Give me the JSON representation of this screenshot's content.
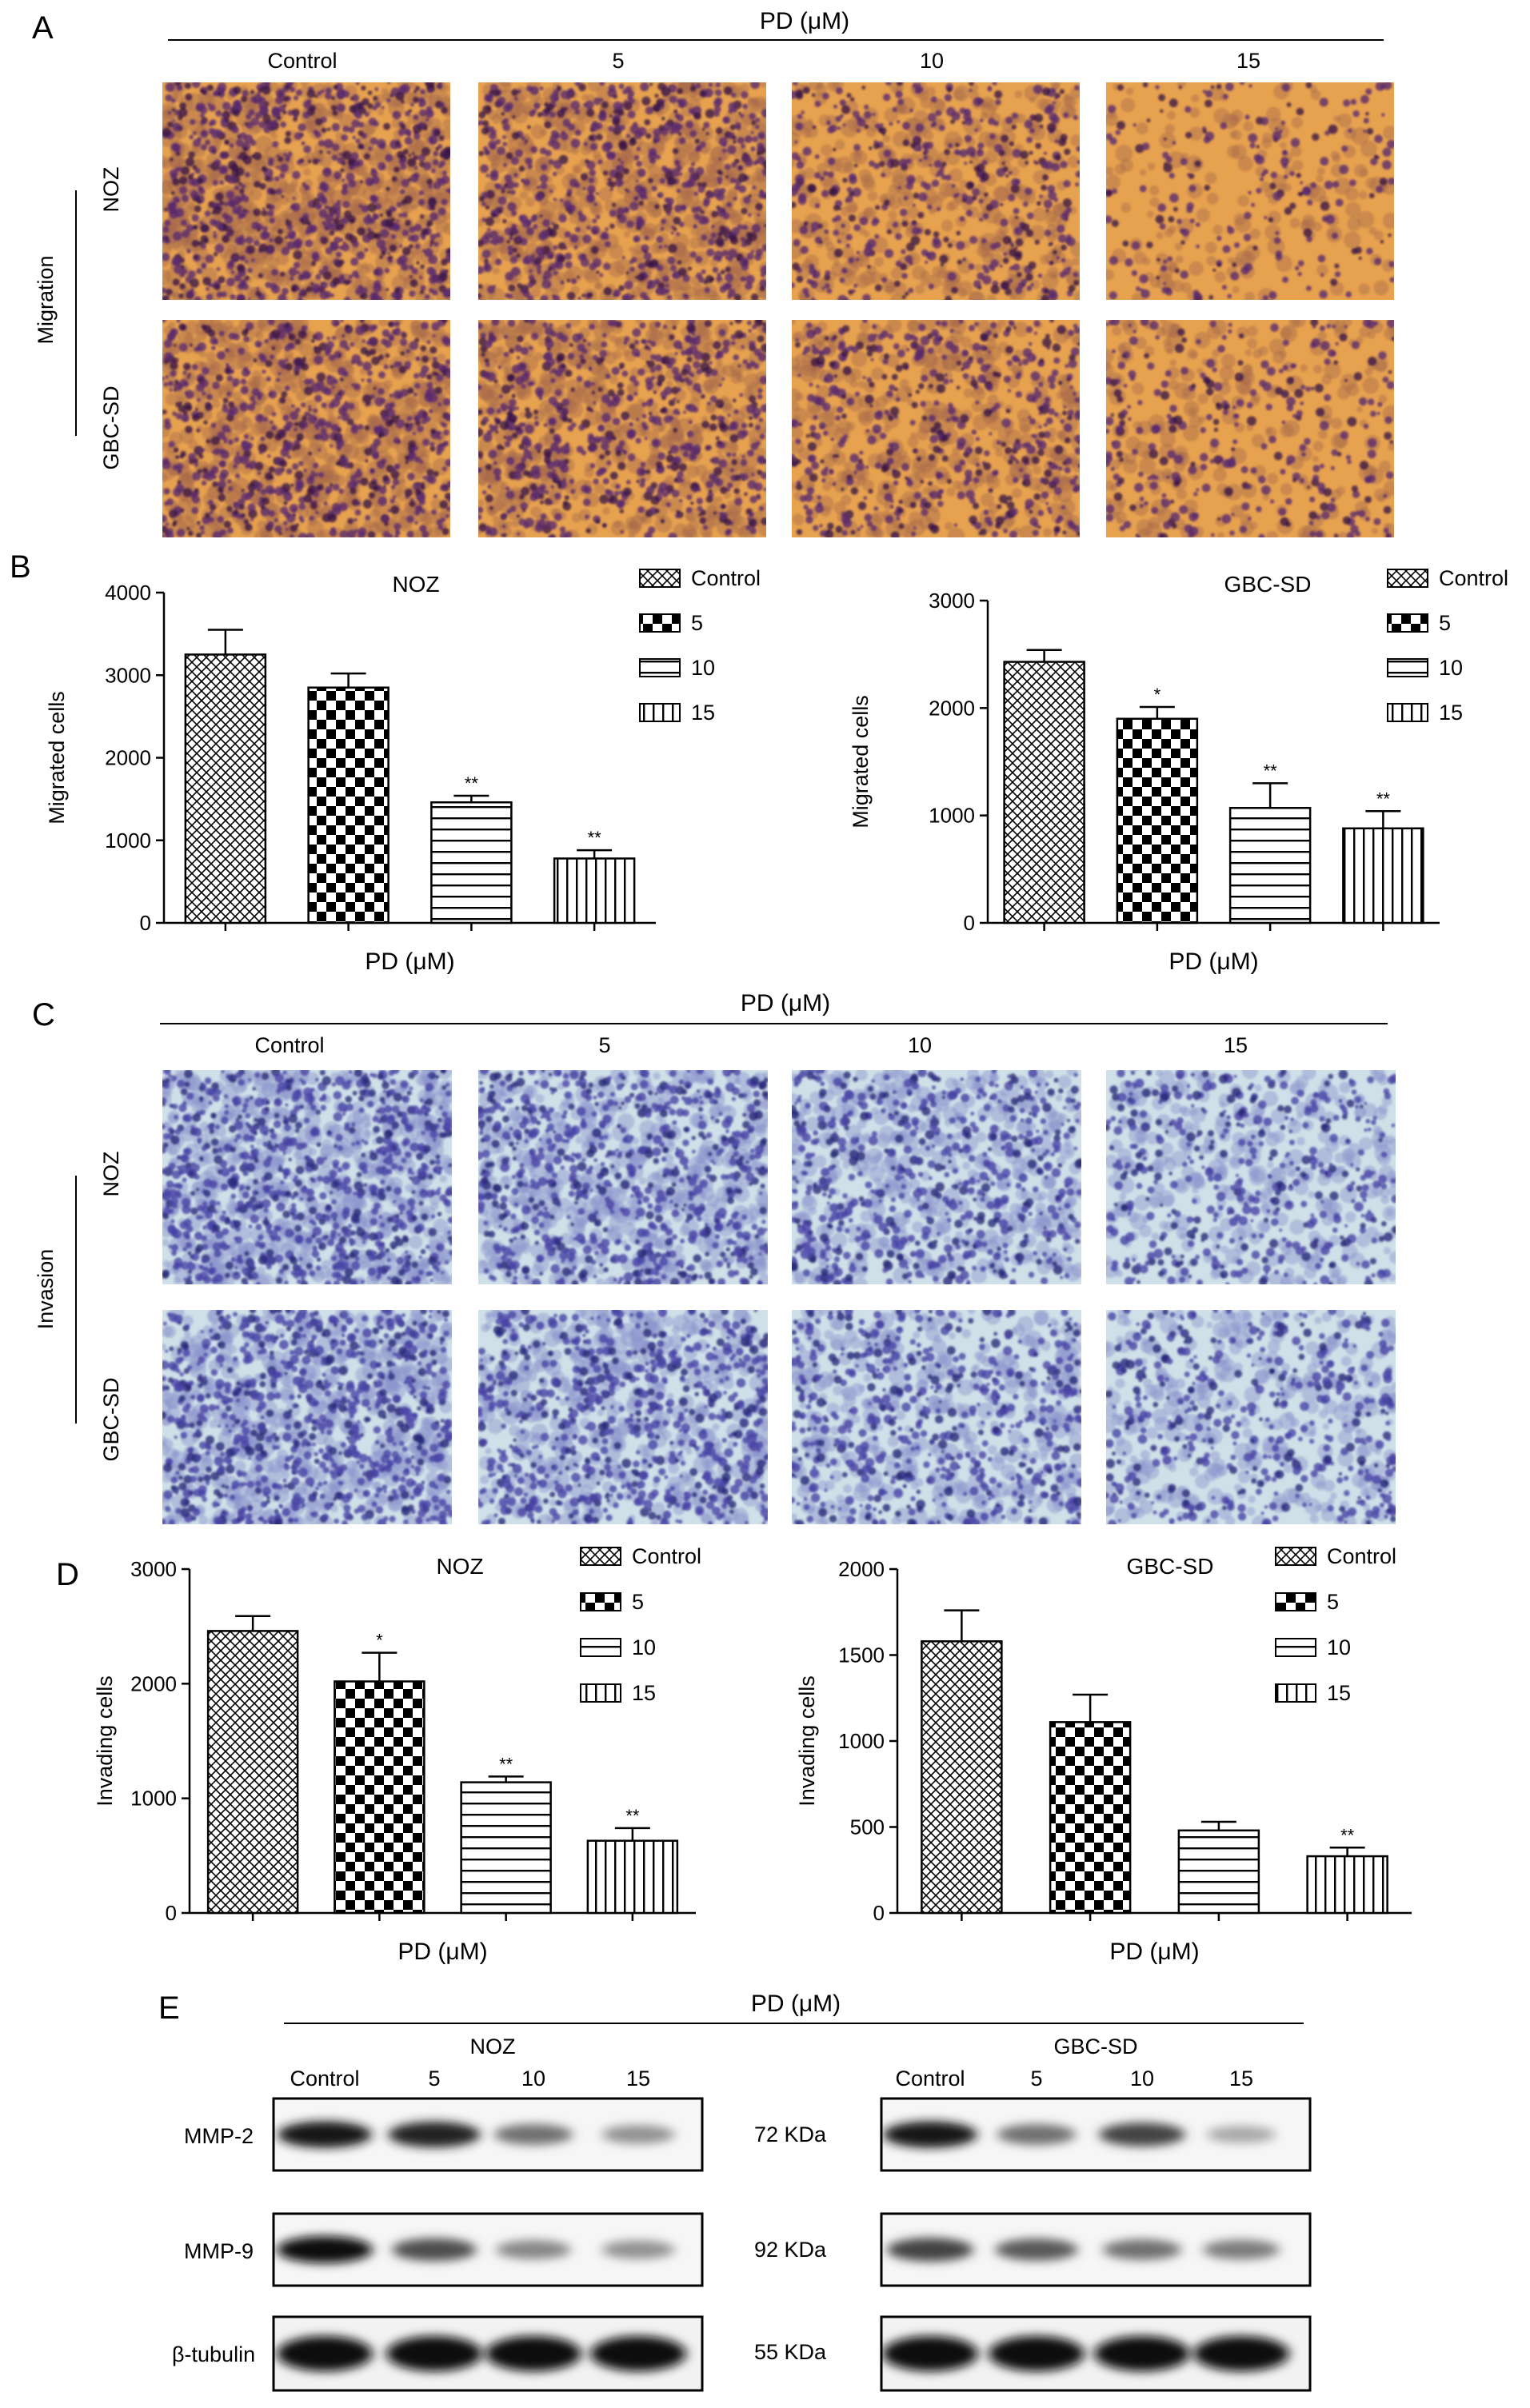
{
  "figure": {
    "panel_letters": [
      "A",
      "B",
      "C",
      "D",
      "E"
    ],
    "treatment_label": "PD (μM)",
    "doses": [
      "Control",
      "5",
      "10",
      "15"
    ]
  },
  "panel_a": {
    "assay_label": "Migration",
    "rows": [
      "NOZ",
      "GBC-SD"
    ],
    "colors": {
      "background": "#e7a24f",
      "mid": "#a86a4c",
      "cell": "#5a2a6e",
      "dark": "#3b1746"
    },
    "densities": [
      [
        1.0,
        0.85,
        0.55,
        0.25
      ],
      [
        0.9,
        0.8,
        0.6,
        0.35
      ]
    ]
  },
  "panel_c": {
    "assay_label": "Invasion",
    "rows": [
      "NOZ",
      "GBC-SD"
    ],
    "colors": {
      "background": "#cfe0e8",
      "mid": "#8b95cc",
      "cell": "#4a43a6",
      "dark": "#2b2a7a"
    },
    "densities": [
      [
        1.0,
        0.85,
        0.7,
        0.5
      ],
      [
        0.95,
        0.8,
        0.65,
        0.5
      ]
    ]
  },
  "chart_data": [
    {
      "panel": "B",
      "type": "bar",
      "title": "NOZ",
      "categories": [
        "Control",
        "5",
        "10",
        "15"
      ],
      "values": [
        3250,
        2850,
        1460,
        780
      ],
      "errors": [
        300,
        170,
        80,
        100
      ],
      "significance": [
        "",
        "",
        "**",
        "**"
      ],
      "xlabel": "PD (μM)",
      "ylabel": "Migrated cells",
      "ylim": [
        0,
        4000
      ],
      "yticks": [
        0,
        1000,
        2000,
        3000,
        4000
      ],
      "legend": [
        "Control",
        "5",
        "10",
        "15"
      ],
      "legend_position": "top-right"
    },
    {
      "panel": "B",
      "type": "bar",
      "title": "GBC-SD",
      "categories": [
        "Control",
        "5",
        "10",
        "15"
      ],
      "values": [
        2430,
        1900,
        1070,
        880
      ],
      "errors": [
        110,
        110,
        230,
        160
      ],
      "significance": [
        "",
        "*",
        "**",
        "**"
      ],
      "xlabel": "PD (μM)",
      "ylabel": "Migrated cells",
      "ylim": [
        0,
        3000
      ],
      "yticks": [
        0,
        1000,
        2000,
        3000
      ],
      "legend": [
        "Control",
        "5",
        "10",
        "15"
      ],
      "legend_position": "top-right"
    },
    {
      "panel": "D",
      "type": "bar",
      "title": "NOZ",
      "categories": [
        "Control",
        "5",
        "10",
        "15"
      ],
      "values": [
        2460,
        2020,
        1140,
        630
      ],
      "errors": [
        130,
        250,
        50,
        110
      ],
      "significance": [
        "",
        "*",
        "**",
        "**"
      ],
      "xlabel": "PD (μM)",
      "ylabel": "Invading cells",
      "ylim": [
        0,
        3000
      ],
      "yticks": [
        0,
        1000,
        2000,
        3000
      ],
      "legend": [
        "Control",
        "5",
        "10",
        "15"
      ],
      "legend_position": "top-right"
    },
    {
      "panel": "D",
      "type": "bar",
      "title": "GBC-SD",
      "categories": [
        "Control",
        "5",
        "10",
        "15"
      ],
      "values": [
        1580,
        1110,
        480,
        330
      ],
      "errors": [
        180,
        160,
        50,
        50
      ],
      "significance": [
        "",
        "",
        "",
        "**"
      ],
      "xlabel": "PD (μM)",
      "ylabel": "Invading cells",
      "ylim": [
        0,
        2000
      ],
      "yticks": [
        0,
        500,
        1000,
        1500,
        2000
      ],
      "legend": [
        "Control",
        "5",
        "10",
        "15"
      ],
      "legend_position": "top-right"
    }
  ],
  "panel_e": {
    "groups": [
      "NOZ",
      "GBC-SD"
    ],
    "lanes": [
      "Control",
      "5",
      "10",
      "15"
    ],
    "bands": [
      {
        "name": "MMP-2",
        "size": "72 KDa",
        "noz": [
          0.95,
          0.9,
          0.55,
          0.4
        ],
        "gbc": [
          0.95,
          0.55,
          0.75,
          0.3
        ]
      },
      {
        "name": "MMP-9",
        "size": "92 KDa",
        "noz": [
          1.0,
          0.7,
          0.45,
          0.4
        ],
        "gbc": [
          0.75,
          0.65,
          0.55,
          0.5
        ]
      },
      {
        "name": "β-tubulin",
        "size": "55 KDa",
        "noz": [
          1.0,
          1.0,
          1.0,
          1.0
        ],
        "gbc": [
          1.0,
          1.0,
          1.0,
          1.0
        ]
      }
    ]
  }
}
